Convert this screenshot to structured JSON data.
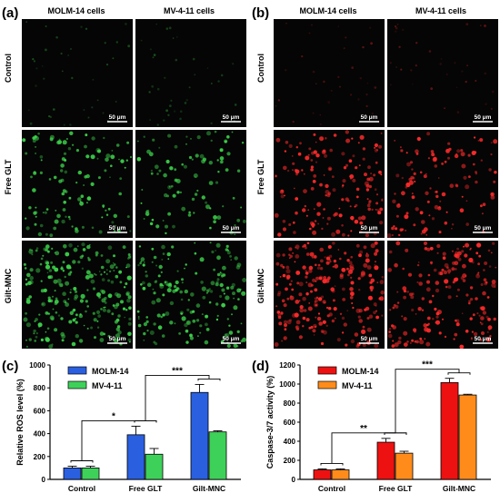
{
  "panels": {
    "a": {
      "label": "(a)",
      "columns": [
        "MOLM-14 cells",
        "MV-4-11 cells"
      ],
      "rows": [
        "Control",
        "Free GLT",
        "Gilt-MNC"
      ],
      "scale_bar": "50 μm",
      "stain_color": "#3cd04a",
      "densities": [
        [
          0.08,
          0.08
        ],
        [
          0.45,
          0.35
        ],
        [
          1.0,
          0.7
        ]
      ]
    },
    "b": {
      "label": "(b)",
      "columns": [
        "MOLM-14 cells",
        "MV-4-11 cells"
      ],
      "rows": [
        "Control",
        "Free GLT",
        "Gilt-MNC"
      ],
      "scale_bar": "50 μm",
      "stain_color": "#ff2a2a",
      "densities": [
        [
          0.06,
          0.06
        ],
        [
          0.65,
          0.45
        ],
        [
          1.0,
          0.75
        ]
      ]
    }
  },
  "chart_data": [
    {
      "type": "bar",
      "label": "(c)",
      "categories": [
        "Control",
        "Free GLT",
        "Gilt-MNC"
      ],
      "series": [
        {
          "name": "MOLM-14",
          "values": [
            100,
            390,
            760
          ],
          "errors": [
            15,
            75,
            70
          ],
          "color": "#2a5fe0"
        },
        {
          "name": "MV-4-11",
          "values": [
            100,
            220,
            415
          ],
          "errors": [
            15,
            50,
            10
          ],
          "color": "#3ed15a"
        }
      ],
      "ylabel": "Relative ROS level (%)",
      "ylim": [
        0,
        1000
      ],
      "yticks": [
        0,
        200,
        400,
        600,
        800,
        1000
      ],
      "significance": [
        {
          "from": 0,
          "to": 1,
          "label": "*"
        },
        {
          "from": 1,
          "to": 2,
          "label": "***"
        }
      ],
      "legend": "top-left",
      "grid": false
    },
    {
      "type": "bar",
      "label": "(d)",
      "categories": [
        "Control",
        "Free GLT",
        "Gilt-MNC"
      ],
      "series": [
        {
          "name": "MOLM-14",
          "values": [
            100,
            390,
            1015
          ],
          "errors": [
            10,
            40,
            45
          ],
          "color": "#ee1111"
        },
        {
          "name": "MV-4-11",
          "values": [
            100,
            275,
            885
          ],
          "errors": [
            10,
            20,
            8
          ],
          "color": "#ff8c1a"
        }
      ],
      "ylabel": "Caspase-3/7 activity (%)",
      "ylim": [
        0,
        1200
      ],
      "yticks": [
        0,
        200,
        400,
        600,
        800,
        1000,
        1200
      ],
      "significance": [
        {
          "from": 0,
          "to": 1,
          "label": "**"
        },
        {
          "from": 1,
          "to": 2,
          "label": "***"
        }
      ],
      "legend": "top-left",
      "grid": false
    }
  ]
}
